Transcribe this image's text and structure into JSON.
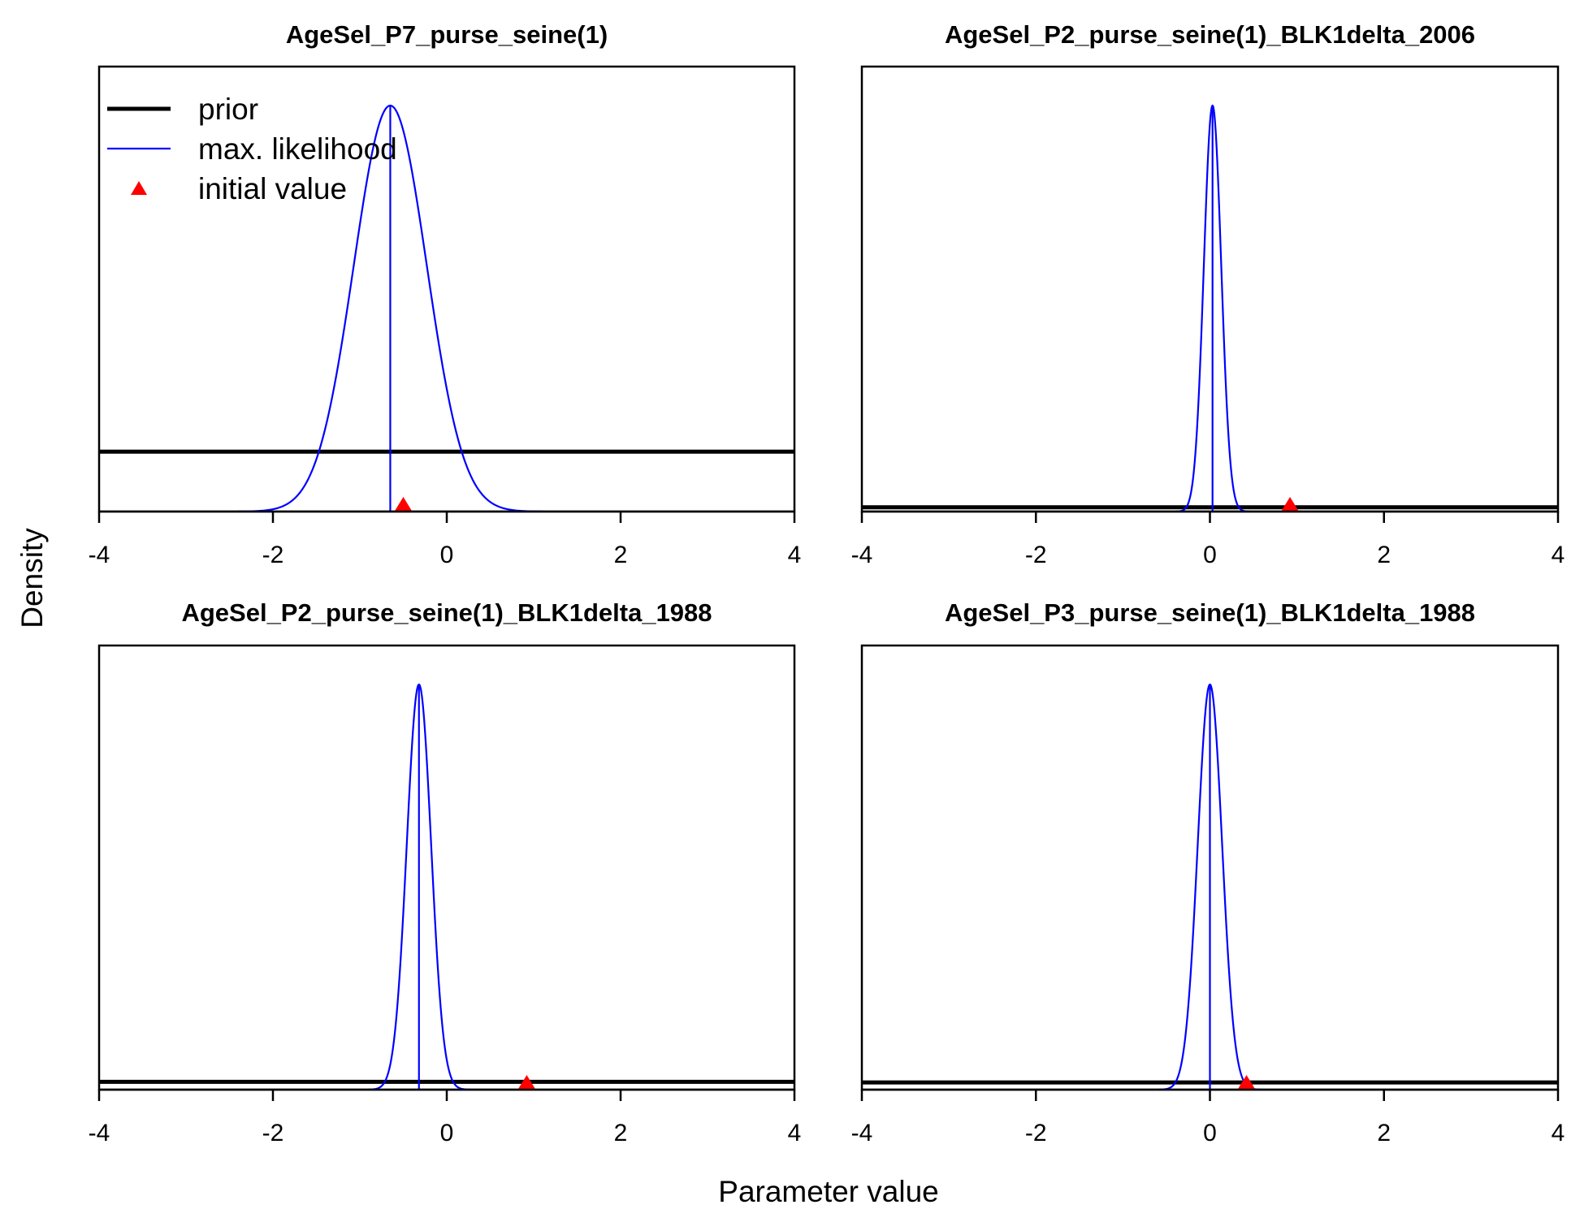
{
  "figure": {
    "ylabel": "Density",
    "xlabel": "Parameter value",
    "legend": {
      "position": "top-left of first panel",
      "items": [
        {
          "label": "prior",
          "style": "thick-line",
          "color": "#000000"
        },
        {
          "label": "max. likelihood",
          "style": "thin-line",
          "color": "#0000ff"
        },
        {
          "label": "initial value",
          "style": "triangle",
          "color": "#ff0000"
        }
      ]
    },
    "colors": {
      "prior": "#000000",
      "mle": "#0000ff",
      "initial": "#ff0000",
      "axis": "#000000"
    }
  },
  "chart_data": [
    {
      "type": "line",
      "title": "AgeSel_P7_purse_seine(1)",
      "xlim": [
        -4,
        4
      ],
      "xticks": [
        "-4",
        "-2",
        "0",
        "2",
        "4"
      ],
      "prior_level": 0.14,
      "mle": {
        "mean": -0.65,
        "sd": 0.42
      },
      "initial_value": -0.5
    },
    {
      "type": "line",
      "title": "AgeSel_P2_purse_seine(1)_BLK1delta_2006",
      "xlim": [
        -4,
        4
      ],
      "xticks": [
        "-4",
        "-2",
        "0",
        "2",
        "4"
      ],
      "prior_level": 0.042,
      "mle": {
        "mean": 0.03,
        "sd": 0.1
      },
      "initial_value": 0.92
    },
    {
      "type": "line",
      "title": "AgeSel_P2_purse_seine(1)_BLK1delta_1988",
      "xlim": [
        -4,
        4
      ],
      "xticks": [
        "-4",
        "-2",
        "0",
        "2",
        "4"
      ],
      "prior_level": 0.055,
      "mle": {
        "mean": -0.32,
        "sd": 0.14
      },
      "initial_value": 0.92
    },
    {
      "type": "line",
      "title": "AgeSel_P3_purse_seine(1)_BLK1delta_1988",
      "xlim": [
        -4,
        4
      ],
      "xticks": [
        "-4",
        "-2",
        "0",
        "2",
        "4"
      ],
      "prior_level": 0.051,
      "mle": {
        "mean": 0.0,
        "sd": 0.14
      },
      "initial_value": 0.42
    }
  ]
}
